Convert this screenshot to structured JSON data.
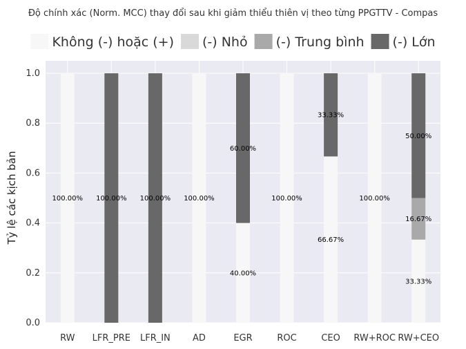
{
  "chart_data": {
    "type": "bar",
    "stacked": true,
    "title": "Độ chính xác (Norm. MCC) thay đổi sau khi giảm thiểu thiên vị theo từng PPGTTV - Compas",
    "xlabel": "",
    "ylabel": "Tỷ lệ các kịch bản",
    "ylim": [
      0,
      1.05
    ],
    "yticks": [
      "0.0",
      "0.2",
      "0.4",
      "0.6",
      "0.8",
      "1.0"
    ],
    "ytick_values": [
      0,
      0.2,
      0.4,
      0.6,
      0.8,
      1.0
    ],
    "grid": true,
    "legend_position": "top",
    "categories": [
      "RW",
      "LFR_PRE",
      "LFR_IN",
      "AD",
      "EGR",
      "ROC",
      "CEO",
      "RW+ROC",
      "RW+CEO"
    ],
    "series": [
      {
        "name": "Không (-) hoặc (+)",
        "color": "#f7f7f7",
        "values": [
          1.0,
          0,
          0,
          1.0,
          0.4,
          1.0,
          0.6667,
          1.0,
          0.3333
        ],
        "labels": [
          "100.00%",
          "",
          "",
          "100.00%",
          "40.00%",
          "100.00%",
          "66.67%",
          "100.00%",
          "33.33%"
        ]
      },
      {
        "name": "(-) Nhỏ",
        "color": "#d9d9d9",
        "values": [
          0,
          0,
          0,
          0,
          0,
          0,
          0,
          0,
          0
        ],
        "labels": [
          "",
          "",
          "",
          "",
          "",
          "",
          "",
          "",
          ""
        ]
      },
      {
        "name": "(-) Trung bình",
        "color": "#a9a9a9",
        "values": [
          0,
          0,
          0,
          0,
          0,
          0,
          0,
          0,
          0.1667
        ],
        "labels": [
          "",
          "",
          "",
          "",
          "",
          "",
          "",
          "",
          "16.67%"
        ]
      },
      {
        "name": "(-) Lớn",
        "color": "#686868",
        "values": [
          0,
          1.0,
          1.0,
          0,
          0.6,
          0,
          0.3333,
          0,
          0.5
        ],
        "labels": [
          "",
          "100.00%",
          "100.00%",
          "",
          "60.00%",
          "",
          "33.33%",
          "",
          "50.00%"
        ]
      }
    ],
    "colors": {
      "background": "#eaeaf2",
      "grid": "#ffffff"
    }
  }
}
